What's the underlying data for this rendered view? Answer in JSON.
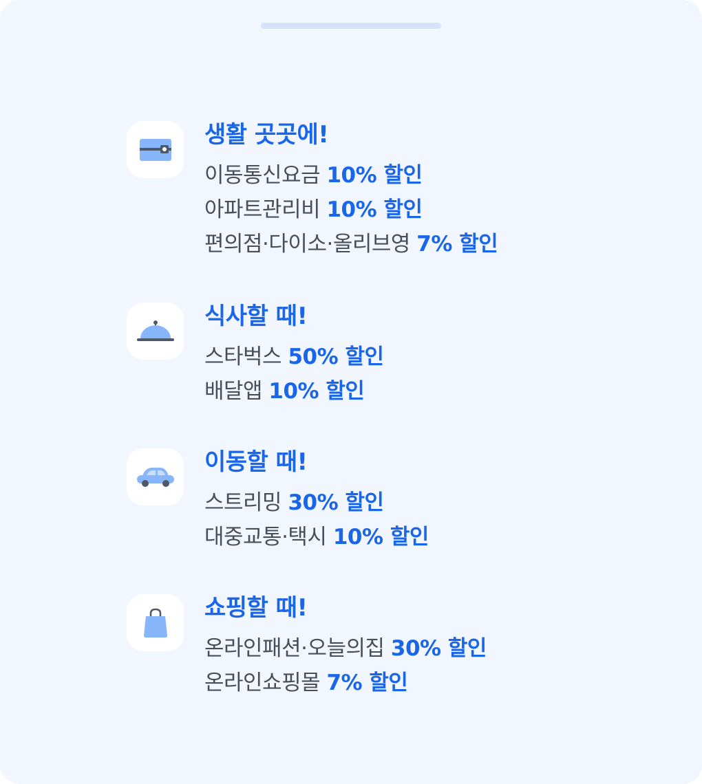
{
  "sections": [
    {
      "icon": "wallet-icon",
      "title": "생활 곳곳에!",
      "items": [
        {
          "label": "이동통신요금",
          "discount": "10% 할인"
        },
        {
          "label": "아파트관리비",
          "discount": "10% 할인"
        },
        {
          "label": "편의점·다이소·올리브영",
          "discount": "7% 할인"
        }
      ]
    },
    {
      "icon": "food-cloche-icon",
      "title": "식사할 때!",
      "items": [
        {
          "label": "스타벅스",
          "discount": "50% 할인"
        },
        {
          "label": "배달앱",
          "discount": "10% 할인"
        }
      ]
    },
    {
      "icon": "car-icon",
      "title": "이동할 때!",
      "items": [
        {
          "label": "스트리밍",
          "discount": "30% 할인"
        },
        {
          "label": "대중교통·택시",
          "discount": "10% 할인"
        }
      ]
    },
    {
      "icon": "shopping-bag-icon",
      "title": "쇼핑할 때!",
      "items": [
        {
          "label": "온라인패션·오늘의집",
          "discount": "30% 할인"
        },
        {
          "label": "온라인쇼핑몰",
          "discount": "7% 할인"
        }
      ]
    }
  ],
  "colors": {
    "accent": "#1a66e8",
    "icon_fill": "#88b6fb",
    "icon_dark": "#4d5868",
    "background": "#f2f6ff"
  }
}
